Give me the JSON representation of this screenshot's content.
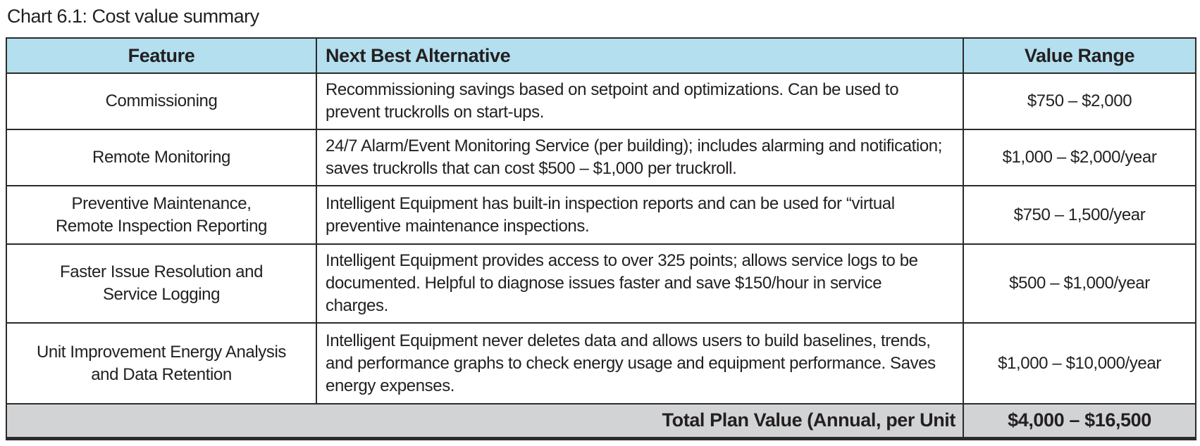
{
  "title": "Chart 6.1: Cost value summary",
  "colors": {
    "header_bg": "#b3dfef",
    "total_bg": "#d1d3d4",
    "border": "#2b2b2b",
    "text": "#231f20"
  },
  "table": {
    "columns": [
      "Feature",
      "Next Best Alternative",
      "Value Range"
    ],
    "rows": [
      {
        "feature": "Commissioning",
        "alternative": "Recommissioning savings based on setpoint and optimizations. Can be used to prevent truckrolls on start-ups.",
        "value_range": "$750 – $2,000"
      },
      {
        "feature": "Remote Monitoring",
        "alternative": "24/7 Alarm/Event Monitoring Service (per building); includes alarming and notification; saves truckrolls that can cost $500 – $1,000 per truckroll.",
        "value_range": "$1,000 – $2,000/year"
      },
      {
        "feature": "Preventive Maintenance,\nRemote Inspection Reporting",
        "alternative": "Intelligent Equipment has built-in inspection reports and can be used for “virtual preventive maintenance inspections.",
        "value_range": "$750 – 1,500/year"
      },
      {
        "feature": "Faster Issue Resolution and\nService Logging",
        "alternative": "Intelligent Equipment provides access to over 325 points; allows service logs to be documented. Helpful to diagnose issues faster and save $150/hour in service charges.",
        "value_range": "$500 – $1,000/year"
      },
      {
        "feature": "Unit Improvement Energy Analysis\nand Data Retention",
        "alternative": "Intelligent Equipment never deletes data and allows users to build baselines, trends, and performance graphs to check energy usage and equipment performance. Saves energy expenses.",
        "value_range": "$1,000 – $10,000/year"
      }
    ],
    "total": {
      "label": "Total Plan Value (Annual, per Unit",
      "value": "$4,000 – $16,500"
    }
  }
}
